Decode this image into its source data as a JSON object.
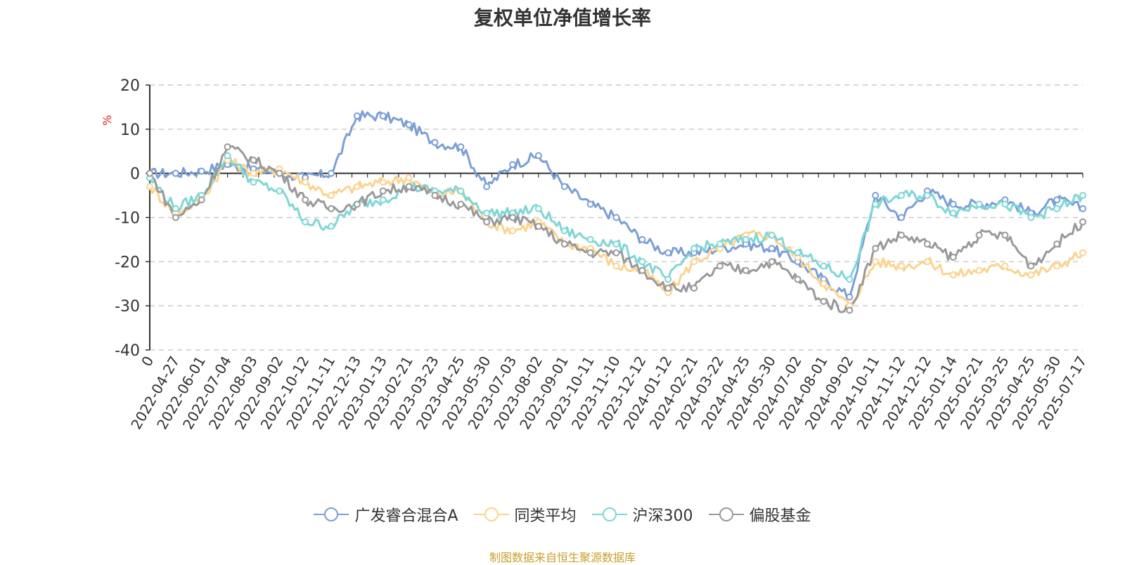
{
  "chart_data": {
    "type": "line",
    "title": "复权单位净值增长率",
    "ylabel": "%",
    "ylim": [
      -40,
      20
    ],
    "yticks": [
      "20",
      "10",
      "0",
      "-10",
      "-20",
      "-30",
      "-40"
    ],
    "grid": true,
    "legend_position": "bottom",
    "x_ticks": [
      "0",
      "2022-04-27",
      "2022-06-01",
      "2022-07-04",
      "2022-08-03",
      "2022-09-02",
      "2022-10-12",
      "2022-11-11",
      "2022-12-13",
      "2023-01-13",
      "2023-02-21",
      "2023-03-23",
      "2023-04-25",
      "2023-05-30",
      "2023-07-03",
      "2023-08-02",
      "2023-09-01",
      "2023-10-11",
      "2023-11-10",
      "2023-12-12",
      "2024-01-12",
      "2024-02-21",
      "2024-03-22",
      "2024-04-25",
      "2024-05-30",
      "2024-07-02",
      "2024-08-01",
      "2024-09-02",
      "2024-10-11",
      "2024-11-12",
      "2024-12-12",
      "2025-01-14",
      "2025-02-21",
      "2025-03-25",
      "2025-04-25",
      "2025-05-30",
      "2025-07-17"
    ],
    "x": [
      "0",
      "2022-04-27",
      "2022-06-01",
      "2022-07-04",
      "2022-08-03",
      "2022-09-02",
      "2022-10-12",
      "2022-11-11",
      "2022-12-13",
      "2023-01-13",
      "2023-02-21",
      "2023-03-23",
      "2023-04-25",
      "2023-05-30",
      "2023-07-03",
      "2023-08-02",
      "2023-09-01",
      "2023-10-11",
      "2023-11-10",
      "2023-12-12",
      "2024-01-12",
      "2024-02-21",
      "2024-03-22",
      "2024-04-25",
      "2024-05-30",
      "2024-07-02",
      "2024-08-01",
      "2024-09-02",
      "2024-10-11",
      "2024-11-12",
      "2024-12-12",
      "2025-01-14",
      "2025-02-21",
      "2025-03-25",
      "2025-04-25",
      "2025-05-30",
      "2025-07-17"
    ],
    "series": [
      {
        "name": "广发睿合混合A",
        "color": "#7b9fd6",
        "values": [
          0,
          0,
          0.5,
          2,
          1,
          0,
          -1,
          0,
          13,
          13,
          11,
          7,
          6,
          -3,
          2,
          4,
          -3,
          -7,
          -10,
          -15,
          -18,
          -18,
          -17,
          -16,
          -17,
          -20,
          -24,
          -28,
          -5,
          -10,
          -4,
          -7,
          -7,
          -6,
          -9,
          -6,
          -8
        ]
      },
      {
        "name": "同类平均",
        "color": "#fcd38d",
        "values": [
          -3,
          -9,
          -6,
          3,
          0,
          1,
          -2,
          -5,
          -3,
          -2,
          -1,
          -5,
          -4,
          -11,
          -13,
          -11,
          -16,
          -17,
          -21,
          -22,
          -27,
          -20,
          -17,
          -14,
          -14,
          -19,
          -25,
          -30,
          -20,
          -21,
          -20,
          -23,
          -22,
          -21,
          -23,
          -21,
          -18
        ]
      },
      {
        "name": "沪深300",
        "color": "#7fd6d6",
        "values": [
          -1,
          -8,
          -5,
          4,
          -2,
          -4,
          -11,
          -12,
          -7,
          -6,
          -3,
          -4,
          -4,
          -9,
          -9,
          -8,
          -13,
          -15,
          -16,
          -20,
          -24,
          -17,
          -16,
          -15,
          -14,
          -18,
          -21,
          -24,
          -7,
          -5,
          -5,
          -9,
          -7,
          -7,
          -10,
          -8,
          -5
        ]
      },
      {
        "name": "偏股基金",
        "color": "#999999",
        "values": [
          0,
          -10,
          -6,
          6,
          3,
          0,
          -6,
          -8,
          -7,
          -4,
          -3,
          -5,
          -7,
          -11,
          -10,
          -12,
          -16,
          -18,
          -18,
          -22,
          -26,
          -26,
          -21,
          -22,
          -20,
          -24,
          -29,
          -31,
          -17,
          -14,
          -16,
          -19,
          -14,
          -14,
          -21,
          -16,
          -11
        ]
      }
    ]
  },
  "legend": {
    "items": [
      "广发睿合混合A",
      "同类平均",
      "沪深300",
      "偏股基金"
    ]
  },
  "source_note": "制图数据来自恒生聚源数据库"
}
